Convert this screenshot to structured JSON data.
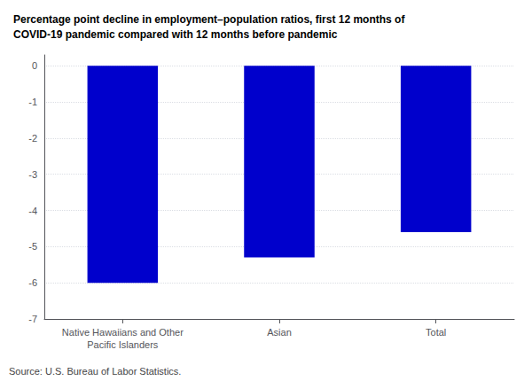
{
  "chart_data": {
    "type": "bar",
    "title": "Percentage point decline in employment–population ratios, first 12 months of\nCOVID-19 pandemic compared with 12 months before pandemic",
    "categories": [
      "Native Hawaiians and Other\nPacific Islanders",
      "Asian",
      "Total"
    ],
    "values": [
      -6.0,
      -5.3,
      -4.6
    ],
    "color": "#0000cc",
    "ylim": [
      -7,
      0.3
    ],
    "yticks": [
      0,
      -1,
      -2,
      -3,
      -4,
      -5,
      -6,
      -7
    ],
    "grid": true,
    "annotations": [
      "Source: U.S. Bureau of Labor Statistics."
    ]
  }
}
